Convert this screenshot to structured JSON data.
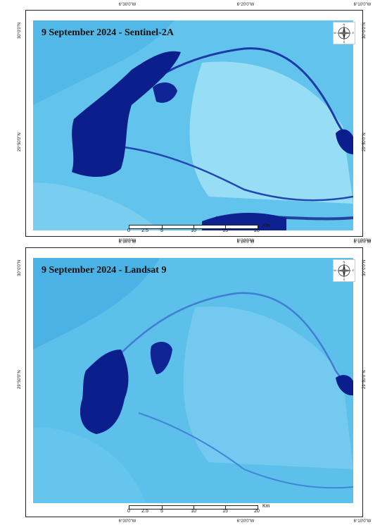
{
  "maps": [
    {
      "title": "9 September 2024 - Sentinel-2A"
    },
    {
      "title": "9 September 2024 - Landsat 9"
    }
  ],
  "graticule": {
    "lon": [
      "6°30'0\"W",
      "6°20'0\"W",
      "6°10'0\"W"
    ],
    "lat": [
      "30°0'0\"N",
      "29°50'0\"N"
    ]
  },
  "scale": {
    "ticks": [
      "0",
      "2.5",
      "5",
      "10",
      "15",
      "20"
    ],
    "unit": "Km"
  },
  "compass": {
    "n": "N",
    "s": "S",
    "e": "E",
    "w": "W"
  },
  "colors": {
    "background": "#5fc3ec",
    "water": "#0a1e8c",
    "land_light": "#8fdcf4"
  }
}
